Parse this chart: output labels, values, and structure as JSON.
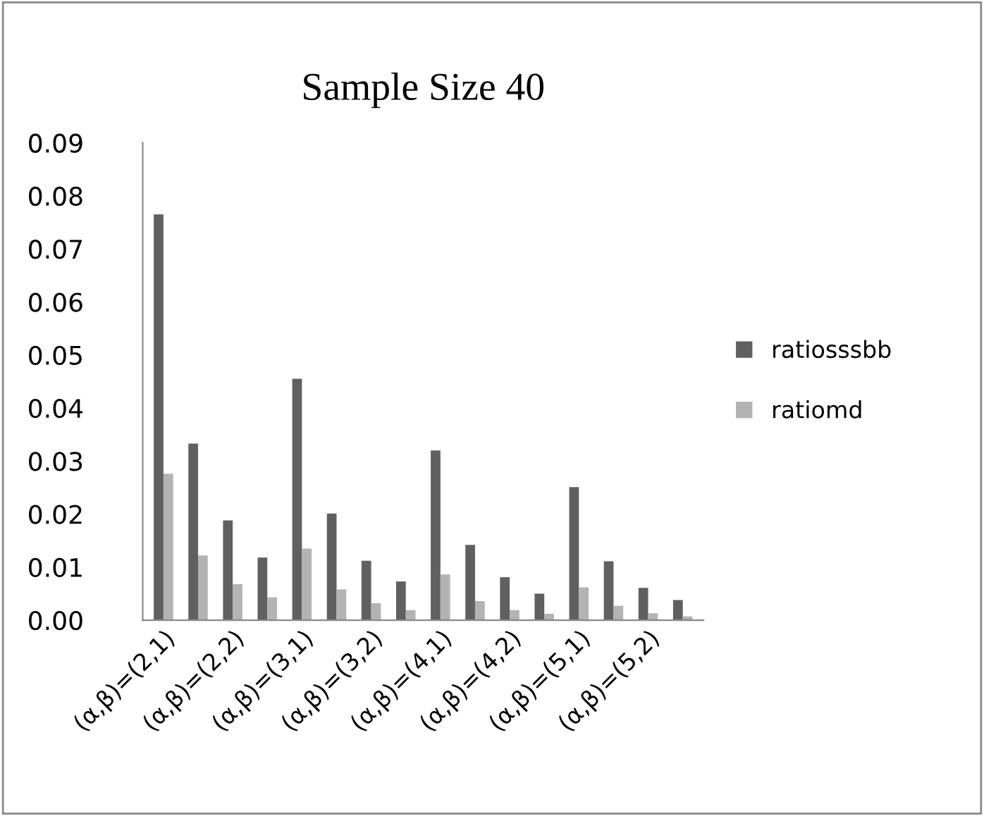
{
  "chart_data": {
    "type": "bar",
    "title": "Sample Size 40",
    "categories": [
      "(α,β)=(2,1)",
      null,
      "(α,β)=(2,2)",
      null,
      "(α,β)=(3,1)",
      null,
      "(α,β)=(3,2)",
      null,
      "(α,β)=(4,1)",
      null,
      "(α,β)=(4,2)",
      null,
      "(α,β)=(5,1)",
      null,
      "(α,β)=(5,2)",
      null
    ],
    "series": [
      {
        "name": "ratiosssbb",
        "color": "#606060",
        "values": [
          0.0765,
          0.0333,
          0.0188,
          0.0118,
          0.0455,
          0.0201,
          0.0112,
          0.0073,
          0.032,
          0.0142,
          0.0081,
          0.005,
          0.0251,
          0.0111,
          0.0061,
          0.0038
        ]
      },
      {
        "name": "ratiomd",
        "color": "#b3b3b3",
        "values": [
          0.0276,
          0.0122,
          0.0068,
          0.0043,
          0.0135,
          0.0058,
          0.0032,
          0.0019,
          0.0086,
          0.0036,
          0.0019,
          0.0012,
          0.0062,
          0.0027,
          0.0013,
          0.0007
        ]
      }
    ],
    "ylim": [
      0,
      0.09
    ],
    "yticks": [
      {
        "value": 0,
        "label": "0.00"
      },
      {
        "value": 0.01,
        "label": "0.01"
      },
      {
        "value": 0.02,
        "label": "0.02"
      },
      {
        "value": 0.03,
        "label": "0.03"
      },
      {
        "value": 0.04,
        "label": "0.04"
      },
      {
        "value": 0.05,
        "label": "0.05"
      },
      {
        "value": 0.06,
        "label": "0.06"
      },
      {
        "value": 0.07,
        "label": "0.07"
      },
      {
        "value": 0.08,
        "label": "0.08"
      },
      {
        "value": 0.09,
        "label": "0.09"
      }
    ],
    "grid": false,
    "legend": "right"
  }
}
